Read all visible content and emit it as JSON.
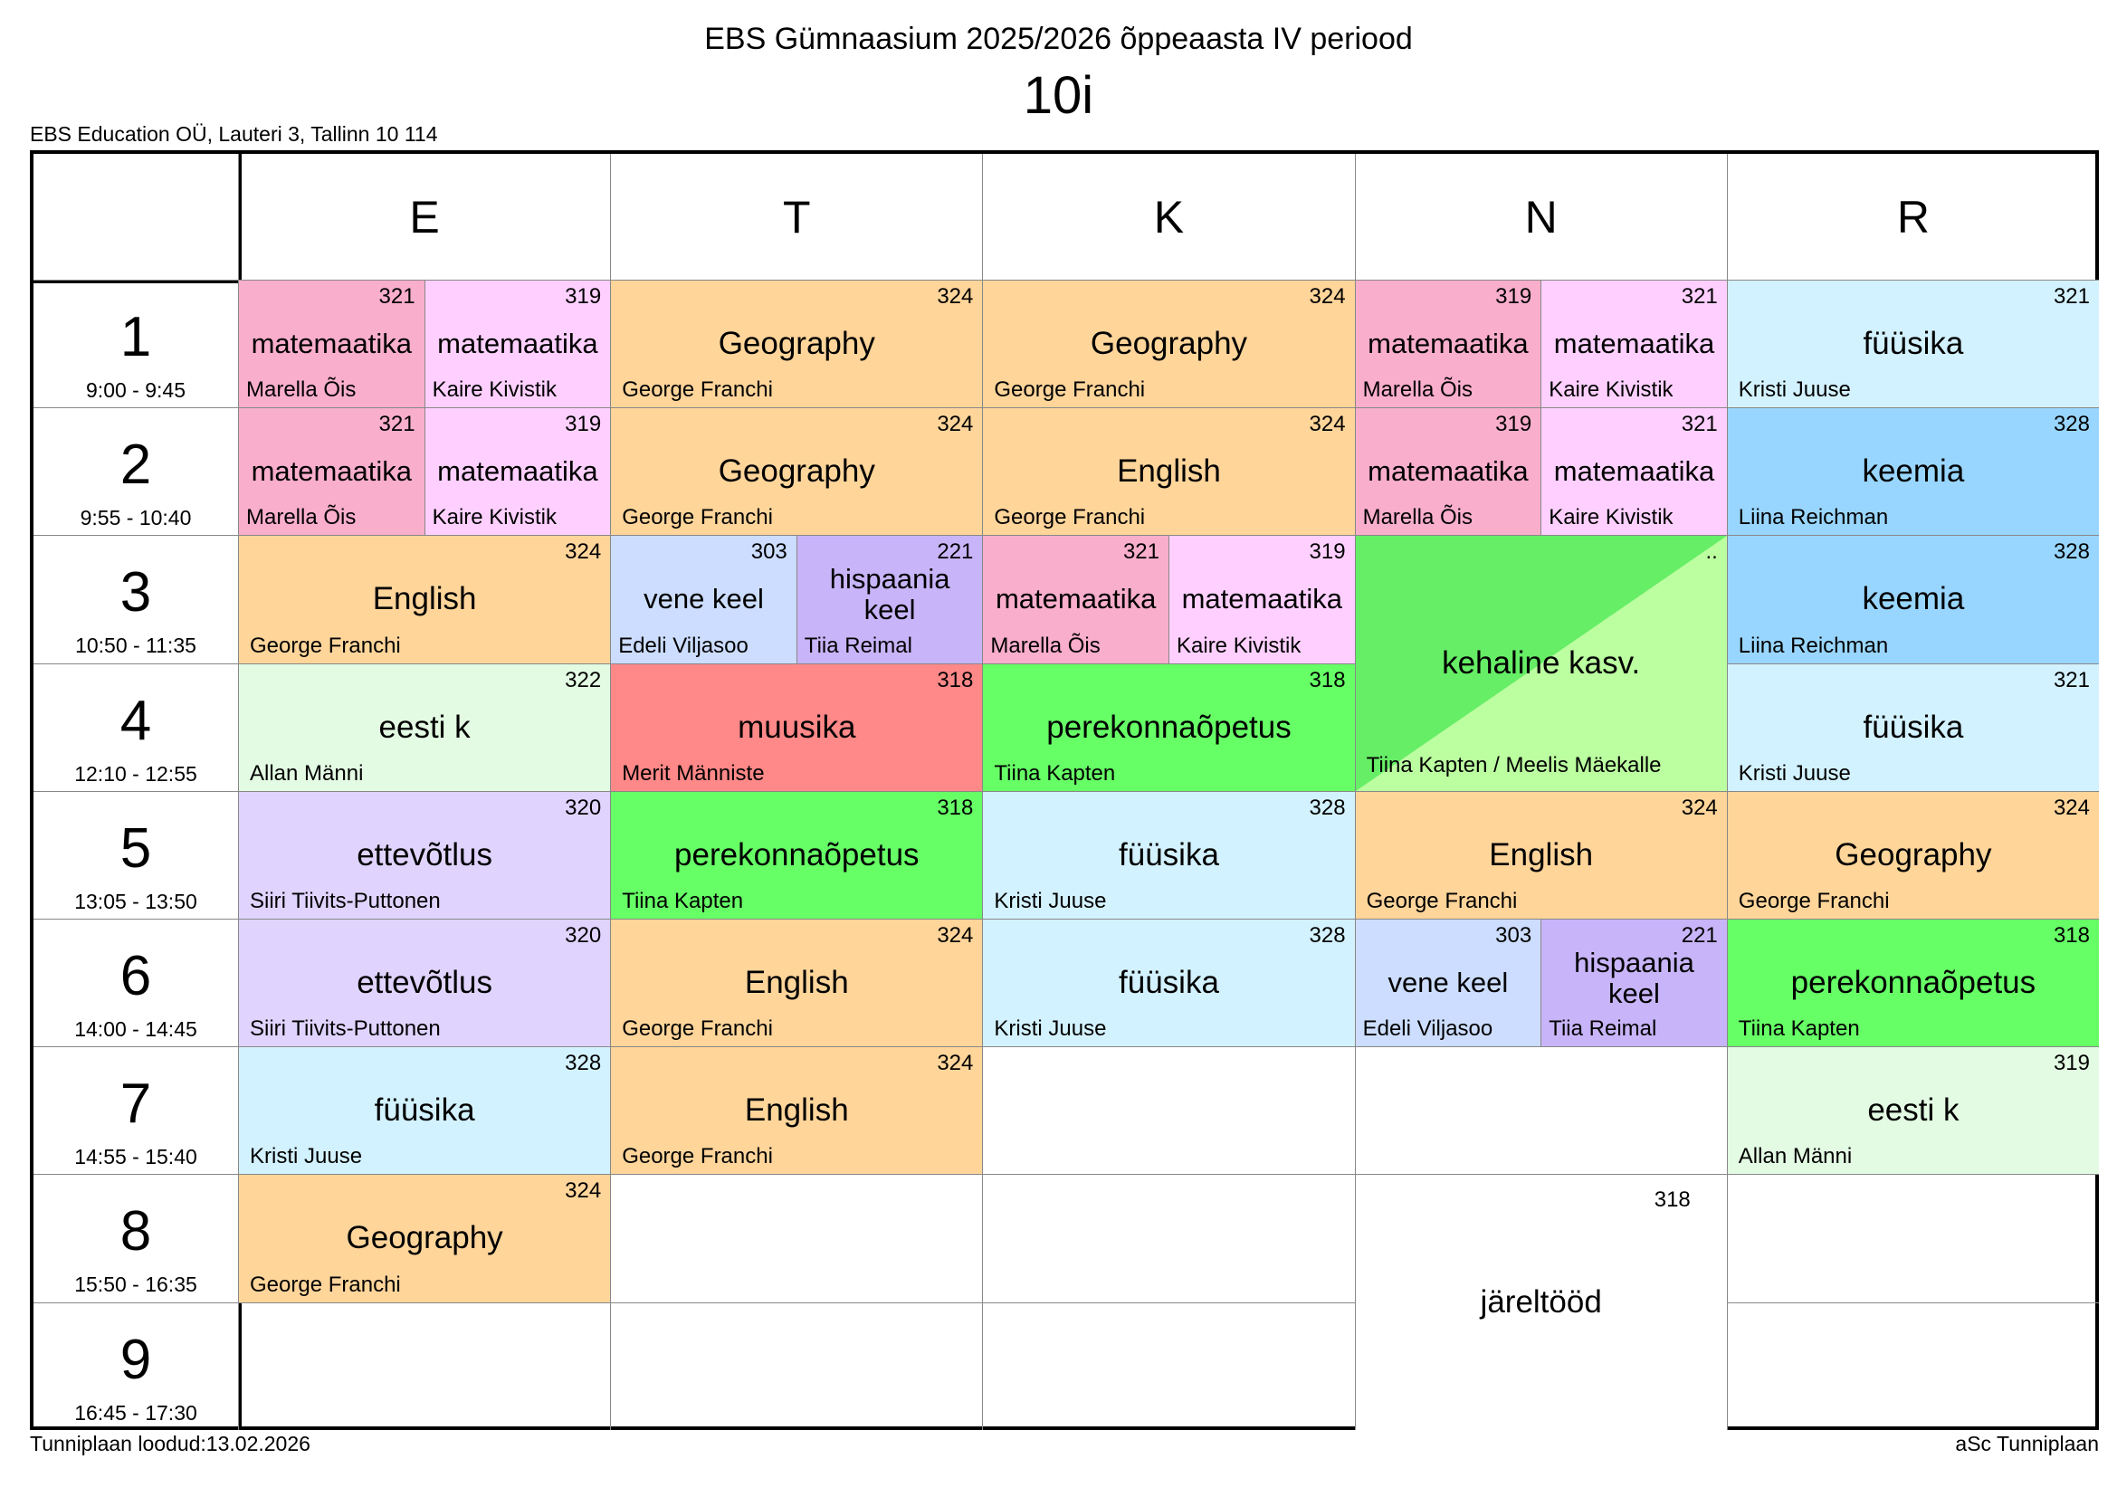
{
  "header": {
    "title": "EBS Gümnaasium 2025/2026 õppeaasta IV periood",
    "class_name": "10i",
    "address": "EBS Education OÜ, Lauteri 3, Tallinn 10 114"
  },
  "footer": {
    "created": "Tunniplaan loodud:13.02.2026",
    "software": "aSc Tunniplaan"
  },
  "colors": {
    "math_pink": "#F9AECB",
    "math_lightpink": "#FFD0FF",
    "orange": "#FFD59A",
    "fyysika": "#D3F2FF",
    "keemia": "#99D6FF",
    "eesti": "#E3FBE3",
    "vene": "#CCDDFF",
    "hispaania": "#C8B4F8",
    "muusika": "#FF8888",
    "green": "#66FF66",
    "ettevotlus": "#E0D4FF",
    "kehaline_dark": "#66EE66",
    "kehaline_light": "#BBFFA0",
    "empty": "#FFFFFF"
  },
  "days": [
    "E",
    "T",
    "K",
    "N",
    "R"
  ],
  "periods": [
    {
      "num": "1",
      "time": "9:00 - 9:45"
    },
    {
      "num": "2",
      "time": "9:55 - 10:40"
    },
    {
      "num": "3",
      "time": "10:50 - 11:35"
    },
    {
      "num": "4",
      "time": "12:10 - 12:55"
    },
    {
      "num": "5",
      "time": "13:05 - 13:50"
    },
    {
      "num": "6",
      "time": "14:00 - 14:45"
    },
    {
      "num": "7",
      "time": "14:55 - 15:40"
    },
    {
      "num": "8",
      "time": "15:50 - 16:35"
    },
    {
      "num": "9",
      "time": "16:45 - 17:30"
    }
  ],
  "lessons": [
    {
      "day": 0,
      "period": 1,
      "half": "L",
      "subject": "matemaatika",
      "room": "321",
      "teacher": "Marella Õis",
      "color": "math_pink"
    },
    {
      "day": 0,
      "period": 1,
      "half": "R",
      "subject": "matemaatika",
      "room": "319",
      "teacher": "Kaire Kivistik",
      "color": "math_lightpink"
    },
    {
      "day": 0,
      "period": 2,
      "half": "L",
      "subject": "matemaatika",
      "room": "321",
      "teacher": "Marella Õis",
      "color": "math_pink"
    },
    {
      "day": 0,
      "period": 2,
      "half": "R",
      "subject": "matemaatika",
      "room": "319",
      "teacher": "Kaire Kivistik",
      "color": "math_lightpink"
    },
    {
      "day": 0,
      "period": 3,
      "subject": "English",
      "room": "324",
      "teacher": "George Franchi",
      "color": "orange"
    },
    {
      "day": 0,
      "period": 4,
      "subject": "eesti k",
      "room": "322",
      "teacher": "Allan Männi",
      "color": "eesti"
    },
    {
      "day": 0,
      "period": 5,
      "subject": "ettevõtlus",
      "room": "320",
      "teacher": "Siiri Tiivits-Puttonen",
      "color": "ettevotlus"
    },
    {
      "day": 0,
      "period": 6,
      "subject": "ettevõtlus",
      "room": "320",
      "teacher": "Siiri Tiivits-Puttonen",
      "color": "ettevotlus"
    },
    {
      "day": 0,
      "period": 7,
      "subject": "füüsika",
      "room": "328",
      "teacher": "Kristi Juuse",
      "color": "fyysika"
    },
    {
      "day": 0,
      "period": 8,
      "subject": "Geography",
      "room": "324",
      "teacher": "George Franchi",
      "color": "orange"
    },
    {
      "day": 1,
      "period": 1,
      "subject": "Geography",
      "room": "324",
      "teacher": "George Franchi",
      "color": "orange"
    },
    {
      "day": 1,
      "period": 2,
      "subject": "Geography",
      "room": "324",
      "teacher": "George Franchi",
      "color": "orange"
    },
    {
      "day": 1,
      "period": 3,
      "half": "L",
      "subject": "vene keel",
      "room": "303",
      "teacher": "Edeli Viljasoo",
      "color": "vene"
    },
    {
      "day": 1,
      "period": 3,
      "half": "R",
      "subject": "hispaania keel",
      "room": "221",
      "teacher": "Tiia Reimal",
      "color": "hispaania"
    },
    {
      "day": 1,
      "period": 4,
      "subject": "muusika",
      "room": "318",
      "teacher": "Merit Männiste",
      "color": "muusika"
    },
    {
      "day": 1,
      "period": 5,
      "subject": "perekonnaõpetus",
      "room": "318",
      "teacher": "Tiina Kapten",
      "color": "green"
    },
    {
      "day": 1,
      "period": 6,
      "subject": "English",
      "room": "324",
      "teacher": "George Franchi",
      "color": "orange"
    },
    {
      "day": 1,
      "period": 7,
      "subject": "English",
      "room": "324",
      "teacher": "George Franchi",
      "color": "orange"
    },
    {
      "day": 2,
      "period": 1,
      "subject": "Geography",
      "room": "324",
      "teacher": "George Franchi",
      "color": "orange"
    },
    {
      "day": 2,
      "period": 2,
      "subject": "English",
      "room": "324",
      "teacher": "George Franchi",
      "color": "orange"
    },
    {
      "day": 2,
      "period": 3,
      "half": "L",
      "subject": "matemaatika",
      "room": "321",
      "teacher": "Marella Õis",
      "color": "math_pink"
    },
    {
      "day": 2,
      "period": 3,
      "half": "R",
      "subject": "matemaatika",
      "room": "319",
      "teacher": "Kaire Kivistik",
      "color": "math_lightpink"
    },
    {
      "day": 2,
      "period": 4,
      "subject": "perekonnaõpetus",
      "room": "318",
      "teacher": "Tiina Kapten",
      "color": "green"
    },
    {
      "day": 2,
      "period": 5,
      "subject": "füüsika",
      "room": "328",
      "teacher": "Kristi Juuse",
      "color": "fyysika"
    },
    {
      "day": 2,
      "period": 6,
      "subject": "füüsika",
      "room": "328",
      "teacher": "Kristi Juuse",
      "color": "fyysika"
    },
    {
      "day": 3,
      "period": 1,
      "half": "L",
      "subject": "matemaatika",
      "room": "319",
      "teacher": "Marella Õis",
      "color": "math_pink"
    },
    {
      "day": 3,
      "period": 1,
      "half": "R",
      "subject": "matemaatika",
      "room": "321",
      "teacher": "Kaire Kivistik",
      "color": "math_lightpink"
    },
    {
      "day": 3,
      "period": 2,
      "half": "L",
      "subject": "matemaatika",
      "room": "319",
      "teacher": "Marella Õis",
      "color": "math_pink"
    },
    {
      "day": 3,
      "period": 2,
      "half": "R",
      "subject": "matemaatika",
      "room": "321",
      "teacher": "Kaire Kivistik",
      "color": "math_lightpink"
    },
    {
      "day": 3,
      "period": 3,
      "span": 2,
      "subject": "kehaline kasv.",
      "room": "..",
      "teacher": "Tiina Kapten / Meelis Mäekalle",
      "color": "kehaline_split"
    },
    {
      "day": 3,
      "period": 5,
      "subject": "English",
      "room": "324",
      "teacher": "George Franchi",
      "color": "orange"
    },
    {
      "day": 3,
      "period": 6,
      "half": "L",
      "subject": "vene keel",
      "room": "303",
      "teacher": "Edeli Viljasoo",
      "color": "vene"
    },
    {
      "day": 3,
      "period": 6,
      "half": "R",
      "subject": "hispaania keel",
      "room": "221",
      "teacher": "Tiia Reimal",
      "color": "hispaania"
    },
    {
      "day": 3,
      "period": 8,
      "span": 2,
      "subject": "järeltööd",
      "room": "318",
      "teacher": "",
      "color": "empty"
    },
    {
      "day": 4,
      "period": 1,
      "subject": "füüsika",
      "room": "321",
      "teacher": "Kristi Juuse",
      "color": "fyysika"
    },
    {
      "day": 4,
      "period": 2,
      "subject": "keemia",
      "room": "328",
      "teacher": "Liina Reichman",
      "color": "keemia"
    },
    {
      "day": 4,
      "period": 3,
      "subject": "keemia",
      "room": "328",
      "teacher": "Liina Reichman",
      "color": "keemia"
    },
    {
      "day": 4,
      "period": 4,
      "subject": "füüsika",
      "room": "321",
      "teacher": "Kristi Juuse",
      "color": "fyysika"
    },
    {
      "day": 4,
      "period": 5,
      "subject": "Geography",
      "room": "324",
      "teacher": "George Franchi",
      "color": "orange"
    },
    {
      "day": 4,
      "period": 6,
      "subject": "perekonnaõpetus",
      "room": "318",
      "teacher": "Tiina Kapten",
      "color": "green"
    },
    {
      "day": 4,
      "period": 7,
      "subject": "eesti k",
      "room": "319",
      "teacher": "Allan Männi",
      "color": "eesti"
    }
  ]
}
